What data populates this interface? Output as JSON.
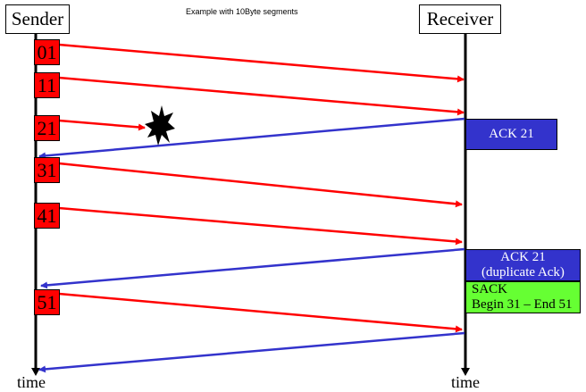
{
  "title": "Example with  10Byte  segments",
  "sender_label": "Sender",
  "receiver_label": "Receiver",
  "time_label": "time",
  "segments": [
    "01",
    "11",
    "21",
    "31",
    "41",
    "51"
  ],
  "ack1": {
    "label": "ACK 21"
  },
  "ack2": {
    "line1": "ACK 21",
    "line2": "(duplicate Ack)"
  },
  "sack": {
    "line1": "SACK",
    "line2": "Begin 31 – End 51"
  },
  "colors": {
    "data_arrow": "#ff0000",
    "ack_arrow": "#3333cc",
    "segment_fill": "#ff0000",
    "ack_fill": "#3333cc",
    "sack_fill": "#66ff33"
  },
  "loss_marker": "explosion-icon"
}
